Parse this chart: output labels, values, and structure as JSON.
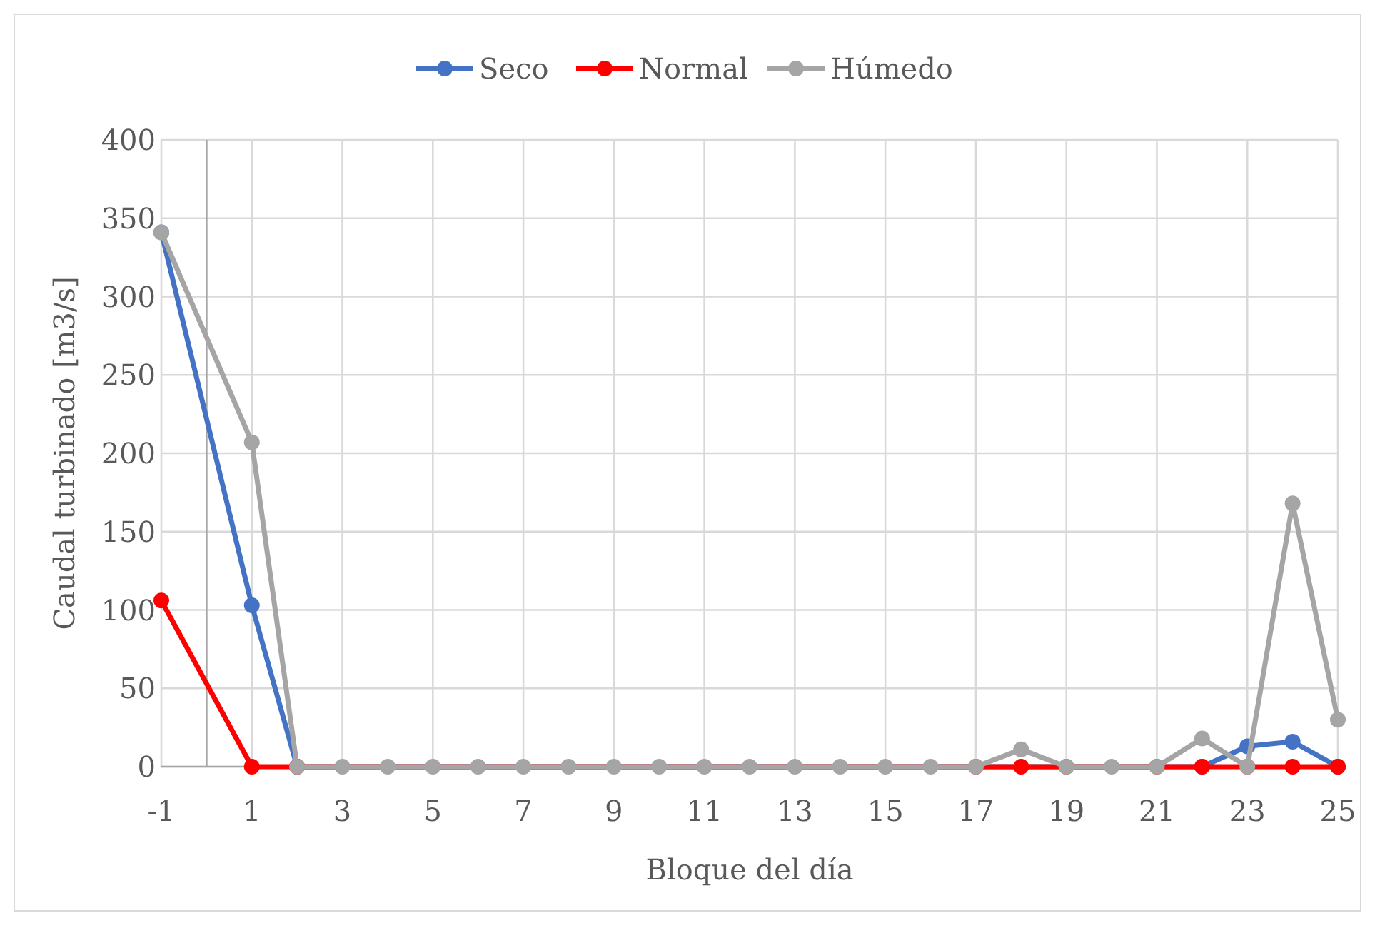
{
  "chart_data": {
    "type": "line",
    "xlabel": "Bloque del día",
    "ylabel": "Caudal turbinado [m3/s]",
    "x": [
      -1,
      1,
      2,
      3,
      4,
      5,
      6,
      7,
      8,
      9,
      10,
      11,
      12,
      13,
      14,
      15,
      16,
      17,
      18,
      19,
      20,
      21,
      22,
      23,
      24,
      25
    ],
    "series": [
      {
        "name": "Seco",
        "color": "#4472c4",
        "values": [
          341,
          103,
          0,
          null,
          null,
          null,
          null,
          null,
          null,
          null,
          null,
          null,
          null,
          null,
          null,
          null,
          null,
          null,
          null,
          null,
          null,
          null,
          0,
          13,
          16,
          0
        ]
      },
      {
        "name": "Normal",
        "color": "#ff0000",
        "values": [
          106,
          0,
          0,
          null,
          null,
          null,
          null,
          null,
          null,
          null,
          null,
          null,
          null,
          null,
          null,
          null,
          null,
          0,
          0,
          0,
          null,
          0,
          0,
          0,
          0,
          0
        ]
      },
      {
        "name": "Húmedo",
        "color": "#a5a5a5",
        "values": [
          341,
          207,
          0,
          0,
          0,
          0,
          0,
          0,
          0,
          0,
          0,
          0,
          0,
          0,
          0,
          0,
          0,
          0,
          11,
          0,
          0,
          0,
          18,
          0,
          168,
          30
        ]
      }
    ],
    "xlim": [
      -1,
      25
    ],
    "xticks": [
      -1,
      1,
      3,
      5,
      7,
      9,
      11,
      13,
      15,
      17,
      19,
      21,
      23,
      25
    ],
    "ylim": [
      0,
      400
    ],
    "yticks": [
      0,
      50,
      100,
      150,
      200,
      250,
      300,
      350,
      400
    ],
    "grid": true,
    "legend": "top",
    "marker": "circle",
    "line_style": "solid"
  }
}
